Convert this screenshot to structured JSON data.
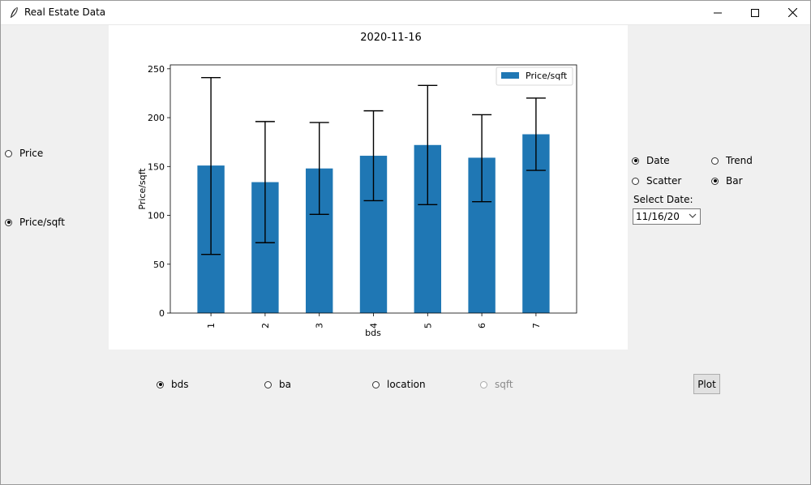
{
  "window": {
    "title": "Real Estate Data",
    "minimize_icon": "minimize-icon",
    "maximize_icon": "maximize-icon",
    "close_icon": "close-icon",
    "app_icon": "feather-icon"
  },
  "left_options": [
    {
      "label": "Price",
      "selected": false
    },
    {
      "label": "Price/sqft",
      "selected": true
    }
  ],
  "plot_options": [
    {
      "label": "Date",
      "selected": true
    },
    {
      "label": "Trend",
      "selected": false
    },
    {
      "label": "Scatter",
      "selected": false
    },
    {
      "label": "Bar",
      "selected": true
    }
  ],
  "select_date": {
    "label": "Select Date:",
    "value": "11/16/20"
  },
  "group_options": [
    {
      "label": "bds",
      "selected": true,
      "enabled": true
    },
    {
      "label": "ba",
      "selected": false,
      "enabled": true
    },
    {
      "label": "location",
      "selected": false,
      "enabled": true
    },
    {
      "label": "sqft",
      "selected": false,
      "enabled": false
    }
  ],
  "plot_button": {
    "label": "Plot"
  },
  "chart_data": {
    "type": "bar",
    "title": "2020-11-16",
    "xlabel": "bds",
    "ylabel": "Price/sqft",
    "categories": [
      "1",
      "2",
      "3",
      "4",
      "5",
      "6",
      "7"
    ],
    "series": [
      {
        "name": "Price/sqft",
        "values": [
          151,
          134,
          148,
          161,
          172,
          159,
          183
        ]
      }
    ],
    "error_bars": [
      [
        60,
        241
      ],
      [
        72,
        196
      ],
      [
        101,
        195
      ],
      [
        115,
        207
      ],
      [
        111,
        233
      ],
      [
        114,
        203
      ],
      [
        146,
        220
      ]
    ],
    "ylim": [
      0,
      254
    ],
    "yticks": [
      0,
      50,
      100,
      150,
      200,
      250
    ],
    "legend": "top-right",
    "color": "#1f77b4",
    "grid": false
  }
}
